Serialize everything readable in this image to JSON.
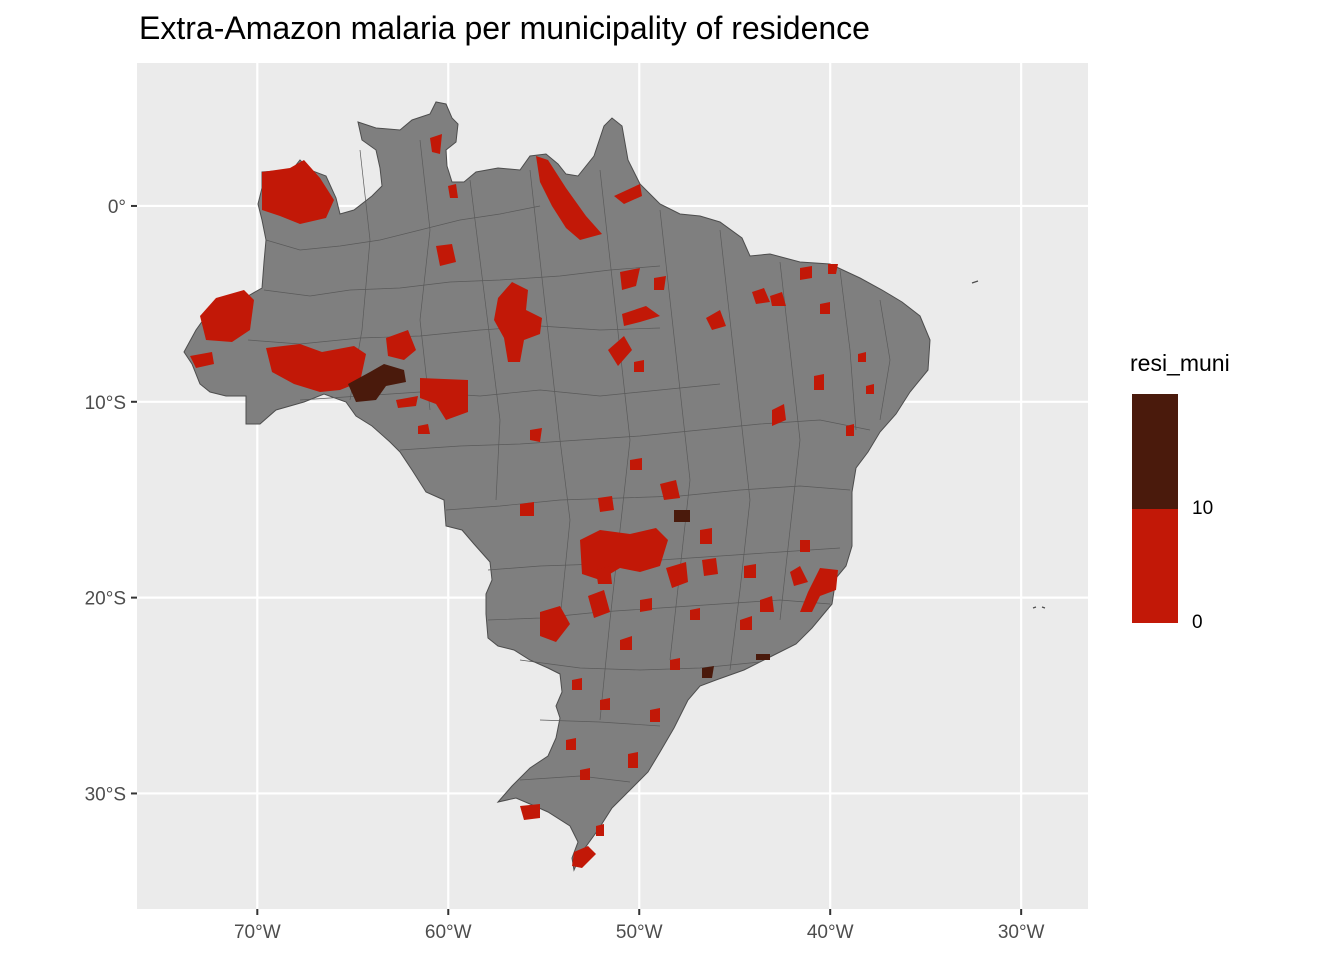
{
  "title": "Extra-Amazon malaria per municipality of residence",
  "map": {
    "region": "Brazil",
    "panel_background": "#ebebeb",
    "land_color": "#7f7f7f",
    "border_color": "#4d4d4d",
    "lon_range": [
      -76.3,
      -26.5
    ],
    "lat_range": [
      -35.9,
      7.3
    ],
    "x_ticks": [
      {
        "value": -70,
        "label": "70°W"
      },
      {
        "value": -60,
        "label": "60°W"
      },
      {
        "value": -50,
        "label": "50°W"
      },
      {
        "value": -40,
        "label": "40°W"
      },
      {
        "value": -30,
        "label": "30°W"
      }
    ],
    "y_ticks": [
      {
        "value": 0,
        "label": "0°"
      },
      {
        "value": -10,
        "label": "10°S"
      },
      {
        "value": -20,
        "label": "20°S"
      },
      {
        "value": -30,
        "label": "30°S"
      }
    ]
  },
  "legend": {
    "title": "resi_muni",
    "bins": [
      {
        "from": 0,
        "to": 10,
        "color": "#c21807"
      },
      {
        "from": 10,
        "to": 20,
        "color": "#4a1a0c"
      }
    ],
    "tick_labels": [
      "0",
      "10"
    ]
  },
  "chart_data": {
    "type": "choropleth",
    "title": "Extra-Amazon malaria per municipality of residence",
    "fill_variable": "resi_muni",
    "low_value_color": "#c21807",
    "high_value_color": "#4a1a0c",
    "no_case_color": "#7f7f7f"
  }
}
